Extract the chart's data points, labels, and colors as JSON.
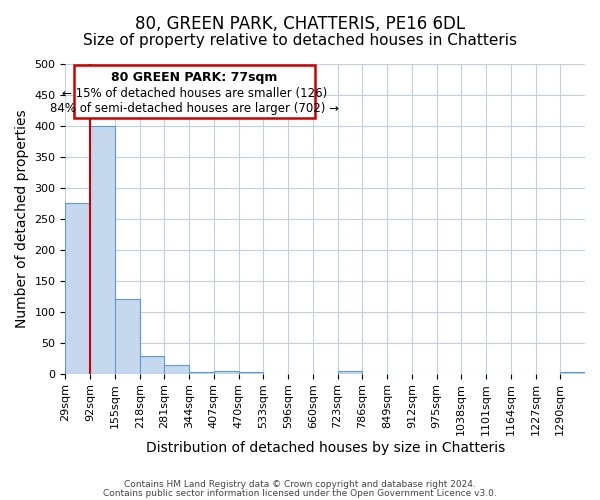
{
  "title": "80, GREEN PARK, CHATTERIS, PE16 6DL",
  "subtitle": "Size of property relative to detached houses in Chatteris",
  "xlabel": "Distribution of detached houses by size in Chatteris",
  "ylabel": "Number of detached properties",
  "footer_lines": [
    "Contains HM Land Registry data © Crown copyright and database right 2024.",
    "Contains public sector information licensed under the Open Government Licence v3.0."
  ],
  "bin_labels": [
    "29sqm",
    "92sqm",
    "155sqm",
    "218sqm",
    "281sqm",
    "344sqm",
    "407sqm",
    "470sqm",
    "533sqm",
    "596sqm",
    "660sqm",
    "723sqm",
    "786sqm",
    "849sqm",
    "912sqm",
    "975sqm",
    "1038sqm",
    "1101sqm",
    "1164sqm",
    "1227sqm",
    "1290sqm"
  ],
  "bar_heights": [
    275,
    400,
    120,
    28,
    14,
    3,
    5,
    3,
    0,
    0,
    0,
    4,
    0,
    0,
    0,
    0,
    0,
    0,
    0,
    0,
    3
  ],
  "bar_color": "#c5d8ed",
  "bar_edgecolor": "#5b9bd5",
  "property_line_x": 1.0,
  "annotation_title": "80 GREEN PARK: 77sqm",
  "annotation_line1": "← 15% of detached houses are smaller (126)",
  "annotation_line2": "84% of semi-detached houses are larger (702) →",
  "annotation_box_color": "#cc0000",
  "ylim": [
    0,
    500
  ],
  "yticks": [
    0,
    50,
    100,
    150,
    200,
    250,
    300,
    350,
    400,
    450,
    500
  ],
  "background_color": "#ffffff",
  "grid_color": "#c0d0e0",
  "title_fontsize": 12,
  "subtitle_fontsize": 11,
  "axis_fontsize": 10,
  "tick_fontsize": 8
}
